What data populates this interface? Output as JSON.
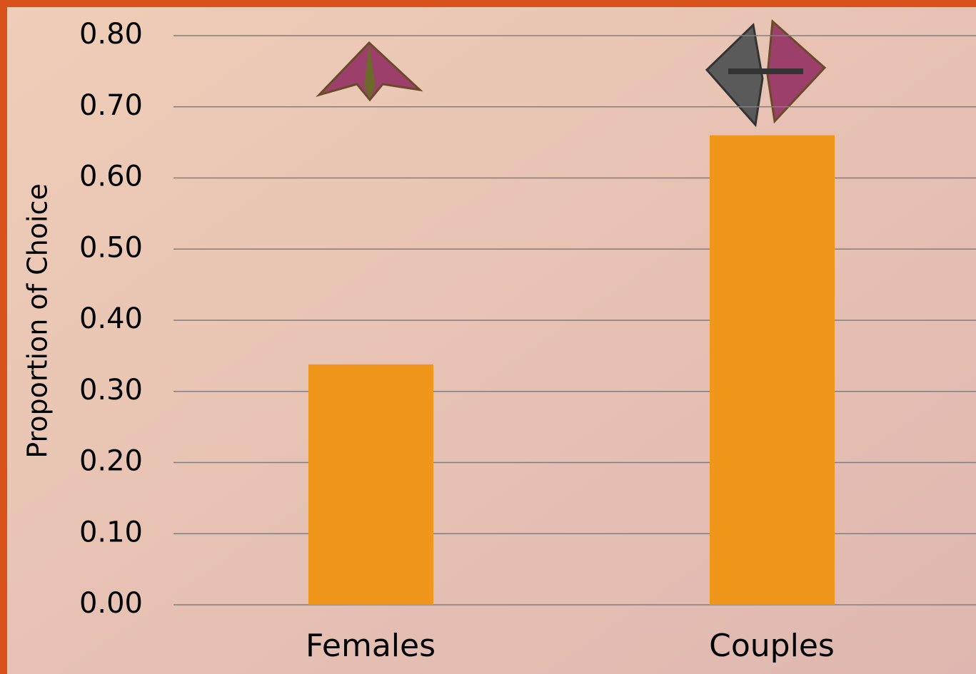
{
  "chart_data": {
    "type": "bar",
    "y_label": "Proportion of Choice",
    "categories": [
      "Females",
      "Couples"
    ],
    "values": [
      0.338,
      0.66
    ],
    "color": "#f0961a",
    "ylim": [
      0,
      0.8
    ],
    "yticks": [
      {
        "value": 0,
        "label": "0.00"
      },
      {
        "value": 0.1,
        "label": "0.10"
      },
      {
        "value": 0.2,
        "label": "0.20"
      },
      {
        "value": 0.3,
        "label": "0.30"
      },
      {
        "value": 0.4,
        "label": "0.40"
      },
      {
        "value": 0.5,
        "label": "0.50"
      },
      {
        "value": 0.6,
        "label": "0.60"
      },
      {
        "value": 0.7,
        "label": "0.70"
      },
      {
        "value": 0.8,
        "label": "0.80"
      }
    ],
    "grid": true
  }
}
